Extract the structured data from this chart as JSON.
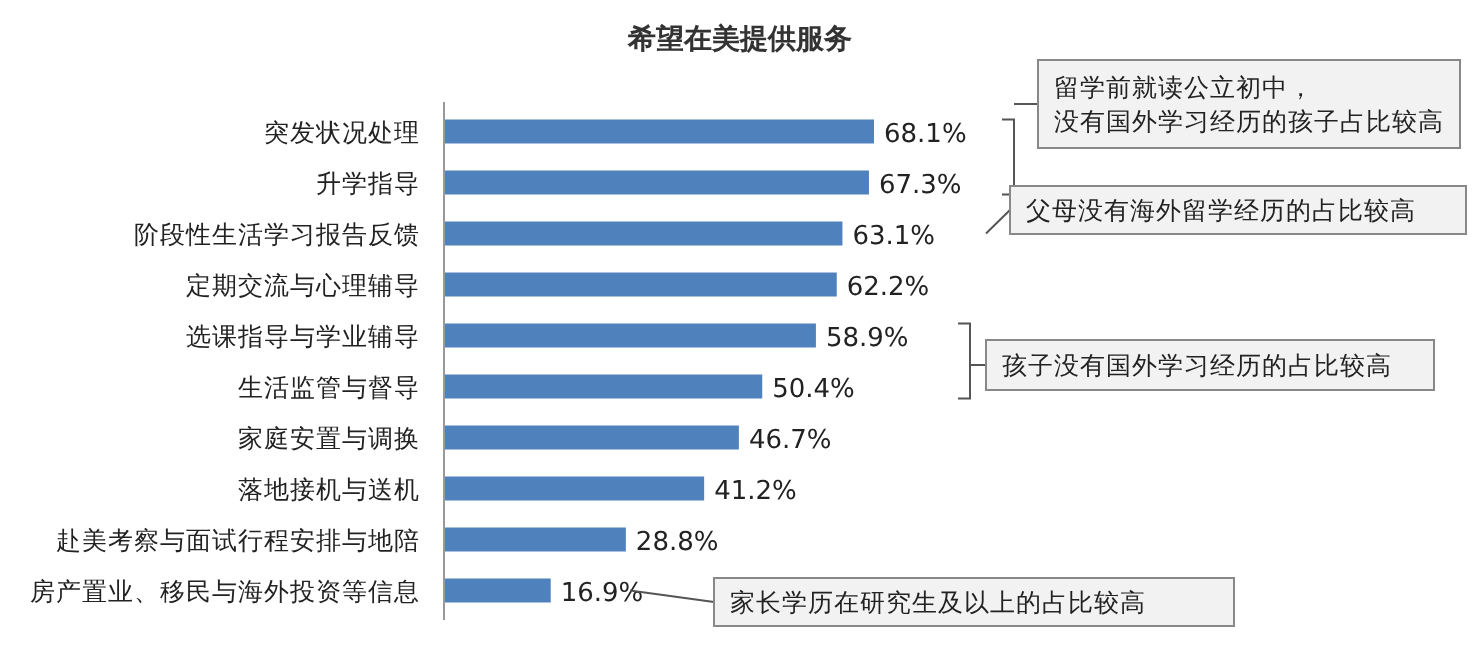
{
  "chart_data": {
    "type": "bar",
    "orientation": "horizontal",
    "title": "希望在美提供服务",
    "categories": [
      "突发状况处理",
      "升学指导",
      "阶段性生活学习报告反馈",
      "定期交流与心理辅导",
      "选课指导与学业辅导",
      "生活监管与督导",
      "家庭安置与调换",
      "落地接机与送机",
      "赴美考察与面试行程安排与地陪",
      "房产置业、移民与海外投资等信息"
    ],
    "values": [
      68.1,
      67.3,
      63.1,
      62.2,
      58.9,
      50.4,
      46.7,
      41.2,
      28.8,
      16.9
    ],
    "value_labels": [
      "68.1%",
      "67.3%",
      "63.1%",
      "62.2%",
      "58.9%",
      "50.4%",
      "46.7%",
      "41.2%",
      "28.8%",
      "16.9%"
    ],
    "color": "#4f81bd",
    "annotations": [
      "留学前就读公立初中，没有国外学习经历的孩子占比较高",
      "父母没有海外留学经历的占比较高",
      "孩子没有国外学习经历的占比较高",
      "家长学历在研究生及以上的占比较高"
    ]
  }
}
